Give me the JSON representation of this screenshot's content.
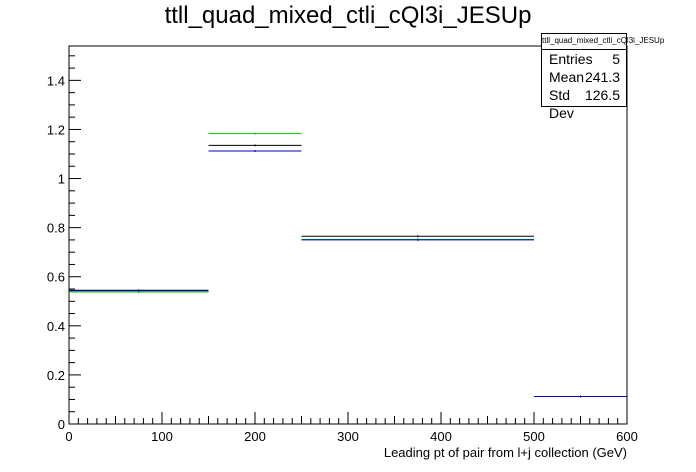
{
  "chart_data": {
    "type": "line",
    "title": "ttll_quad_mixed_ctli_cQl3i_JESUp",
    "xlabel": "Leading pt of pair from l+j collection (GeV)",
    "ylabel": "",
    "xlim": [
      0,
      600
    ],
    "ylim": [
      0,
      1.54
    ],
    "x_ticks": [
      "0",
      "100",
      "200",
      "300",
      "400",
      "500",
      "600"
    ],
    "y_ticks": [
      "0",
      "0.2",
      "0.4",
      "0.6",
      "0.8",
      "1",
      "1.2",
      "1.4"
    ],
    "bin_edges": [
      0,
      150,
      250,
      500,
      600
    ],
    "series": [
      {
        "color": "#000000",
        "values": [
          0.545,
          1.135,
          0.765,
          0.112
        ]
      },
      {
        "color": "#00cc00",
        "values": [
          0.538,
          1.183,
          0.752,
          0.112
        ]
      },
      {
        "color": "#0000cc",
        "values": [
          0.543,
          1.112,
          0.75,
          0.112
        ]
      }
    ],
    "grid": false,
    "legend": "none"
  },
  "stats_box": {
    "title": "ttll_quad_mixed_ctli_cQl3i_JESUp",
    "rows": [
      {
        "label": "Entries",
        "value": "5"
      },
      {
        "label": "Mean",
        "value": "241.3"
      },
      {
        "label": "Std Dev",
        "value": "126.5"
      }
    ]
  }
}
